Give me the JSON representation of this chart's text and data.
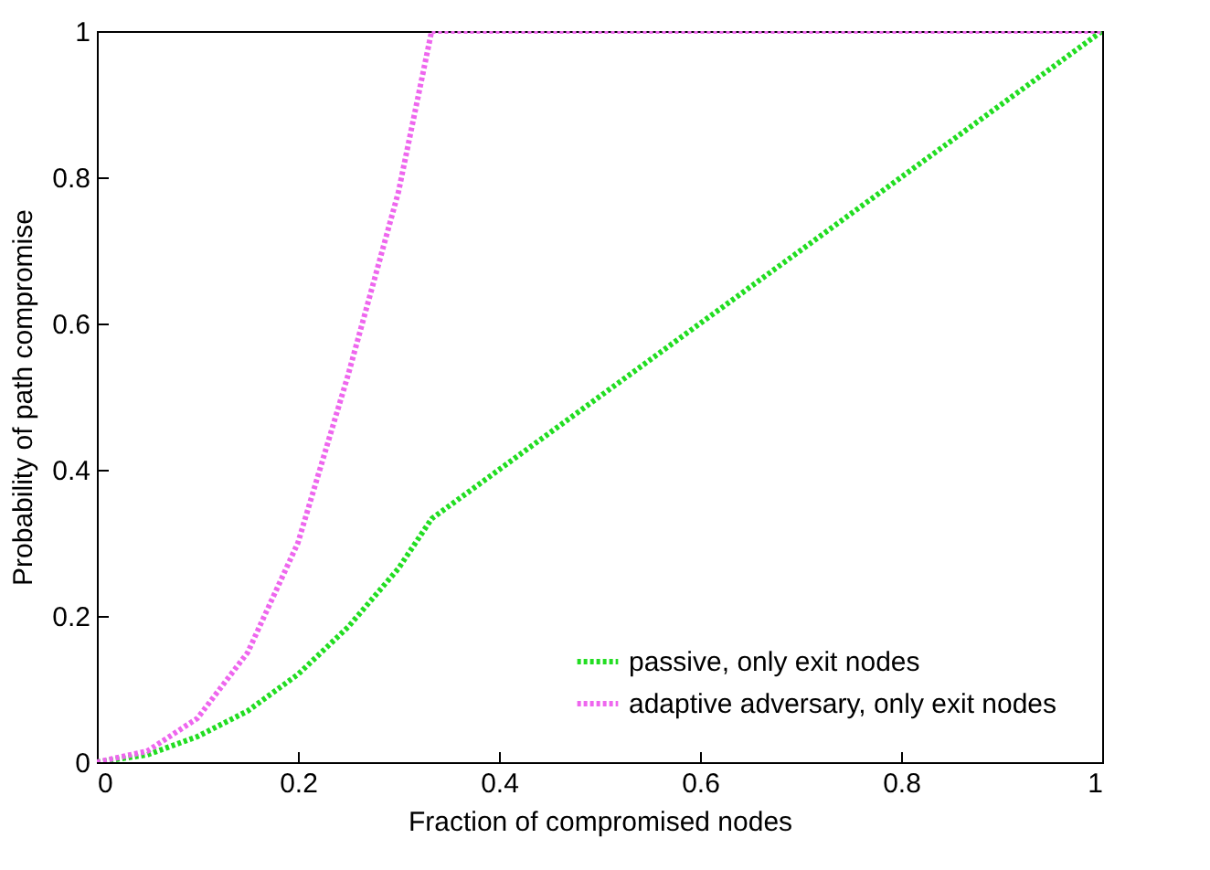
{
  "chart_data": {
    "type": "line",
    "xlabel": "Fraction of compromised nodes",
    "ylabel": "Probability of path compromise",
    "xlim": [
      0,
      1
    ],
    "ylim": [
      0,
      1
    ],
    "xticks": [
      {
        "value": 0,
        "label": "0"
      },
      0.2,
      0.4,
      0.6,
      0.8,
      {
        "value": 1,
        "label": "1"
      }
    ],
    "yticks": [
      {
        "value": 0,
        "label": "0"
      },
      0.2,
      0.4,
      0.6,
      0.8,
      {
        "value": 1,
        "label": "1"
      }
    ],
    "legend": "bottom right",
    "line_style": "dotted",
    "marker": "none",
    "series": [
      {
        "name": "passive, only exit nodes",
        "color": "#22dd22",
        "x": [
          0,
          0.05,
          0.1,
          0.15,
          0.2,
          0.25,
          0.3,
          0.333,
          1
        ],
        "values": [
          0,
          0.01,
          0.035,
          0.07,
          0.12,
          0.185,
          0.265,
          0.333,
          1
        ]
      },
      {
        "name": "adaptive adversary, only exit nodes",
        "color": "#ee66ee",
        "x": [
          0,
          0.05,
          0.1,
          0.15,
          0.2,
          0.25,
          0.3,
          0.333,
          1
        ],
        "values": [
          0,
          0.015,
          0.06,
          0.15,
          0.3,
          0.53,
          0.78,
          1,
          1
        ]
      }
    ]
  }
}
